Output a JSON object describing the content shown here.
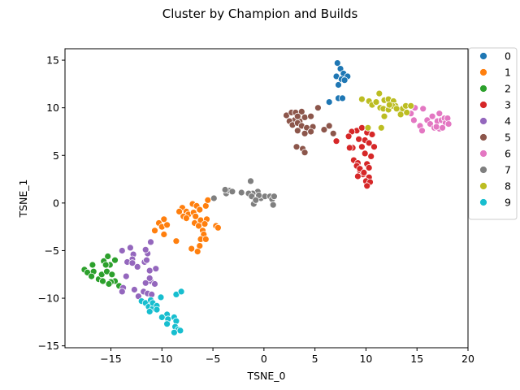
{
  "chart_data": {
    "type": "scatter",
    "title": "Cluster by Champion and Builds",
    "xlabel": "TSNE_0",
    "ylabel": "TSNE_1",
    "xlim": [
      -19.5,
      20
    ],
    "ylim": [
      -15.2,
      16.2
    ],
    "xticks": [
      -15,
      -10,
      -5,
      0,
      5,
      10,
      15,
      20
    ],
    "yticks": [
      -15,
      -10,
      -5,
      0,
      5,
      10,
      15
    ],
    "grid": false,
    "legend_position": "outside-right",
    "series": [
      {
        "name": "0",
        "color": "#1f77b4",
        "points": [
          [
            7.2,
            14.7
          ],
          [
            7.5,
            14.1
          ],
          [
            7.8,
            13.6
          ],
          [
            7.1,
            13.3
          ],
          [
            8.2,
            13.3
          ],
          [
            7.6,
            13.0
          ],
          [
            7.3,
            12.4
          ],
          [
            7.9,
            12.9
          ],
          [
            7.3,
            11.0
          ],
          [
            7.7,
            11.0
          ],
          [
            6.4,
            10.6
          ]
        ]
      },
      {
        "name": "1",
        "color": "#ff7f0e",
        "points": [
          [
            -8.0,
            -0.5
          ],
          [
            -7.6,
            -0.9
          ],
          [
            -7.0,
            -0.1
          ],
          [
            -6.6,
            -0.3
          ],
          [
            -6.3,
            -0.7
          ],
          [
            -7.4,
            -1.2
          ],
          [
            -6.9,
            -1.0
          ],
          [
            -5.7,
            -0.3
          ],
          [
            -5.5,
            0.3
          ],
          [
            -9.8,
            -1.7
          ],
          [
            -10.3,
            -2.1
          ],
          [
            -10.0,
            -2.5
          ],
          [
            -9.5,
            -2.3
          ],
          [
            -10.7,
            -2.9
          ],
          [
            -9.8,
            -3.3
          ],
          [
            -7.9,
            -1.4
          ],
          [
            -6.2,
            -1.8
          ],
          [
            -5.6,
            -1.7
          ],
          [
            -5.8,
            -2.2
          ],
          [
            -4.7,
            -2.4
          ],
          [
            -4.5,
            -2.6
          ],
          [
            -6.8,
            -2.1
          ],
          [
            -6.4,
            -2.4
          ],
          [
            -6.0,
            -2.9
          ],
          [
            -5.9,
            -3.3
          ],
          [
            -6.2,
            -3.8
          ],
          [
            -5.7,
            -3.8
          ],
          [
            -6.3,
            -4.5
          ],
          [
            -7.1,
            -4.8
          ],
          [
            -6.5,
            -5.1
          ],
          [
            -8.6,
            -4.0
          ],
          [
            -7.6,
            -1.6
          ],
          [
            -8.3,
            -0.9
          ],
          [
            -6.7,
            -1.4
          ]
        ]
      },
      {
        "name": "2",
        "color": "#2ca02c",
        "points": [
          [
            -17.6,
            -7.0
          ],
          [
            -17.3,
            -7.3
          ],
          [
            -16.8,
            -6.5
          ],
          [
            -16.7,
            -7.2
          ],
          [
            -16.9,
            -7.7
          ],
          [
            -16.2,
            -8.0
          ],
          [
            -15.8,
            -8.2
          ],
          [
            -15.9,
            -7.5
          ],
          [
            -15.4,
            -7.2
          ],
          [
            -15.7,
            -6.1
          ],
          [
            -15.3,
            -5.6
          ],
          [
            -15.1,
            -6.5
          ],
          [
            -15.5,
            -6.5
          ],
          [
            -14.6,
            -6.0
          ],
          [
            -14.9,
            -7.5
          ],
          [
            -14.6,
            -8.2
          ],
          [
            -15.0,
            -8.3
          ],
          [
            -15.2,
            -8.5
          ],
          [
            -14.2,
            -8.7
          ]
        ]
      },
      {
        "name": "3",
        "color": "#d62728",
        "points": [
          [
            9.1,
            7.6
          ],
          [
            9.6,
            7.9
          ],
          [
            10.1,
            7.4
          ],
          [
            10.6,
            7.2
          ],
          [
            8.6,
            7.5
          ],
          [
            8.3,
            7.0
          ],
          [
            9.9,
            6.6
          ],
          [
            10.3,
            6.3
          ],
          [
            8.7,
            5.8
          ],
          [
            8.4,
            5.8
          ],
          [
            9.6,
            5.9
          ],
          [
            10.8,
            5.9
          ],
          [
            9.9,
            5.2
          ],
          [
            10.5,
            4.9
          ],
          [
            8.8,
            4.5
          ],
          [
            9.2,
            4.2
          ],
          [
            9.1,
            3.9
          ],
          [
            10.1,
            4.1
          ],
          [
            10.3,
            3.7
          ],
          [
            9.4,
            3.4
          ],
          [
            9.7,
            3.0
          ],
          [
            9.2,
            2.8
          ],
          [
            10.3,
            2.7
          ],
          [
            10.0,
            2.3
          ],
          [
            10.4,
            2.2
          ],
          [
            10.1,
            1.8
          ],
          [
            9.4,
            3.6
          ],
          [
            7.1,
            6.5
          ],
          [
            9.8,
            3.2
          ],
          [
            9.3,
            6.7
          ]
        ]
      },
      {
        "name": "4",
        "color": "#9467bd",
        "points": [
          [
            -13.1,
            -4.7
          ],
          [
            -13.9,
            -5.0
          ],
          [
            -12.8,
            -5.4
          ],
          [
            -12.9,
            -5.9
          ],
          [
            -13.4,
            -6.2
          ],
          [
            -12.9,
            -6.3
          ],
          [
            -12.4,
            -6.7
          ],
          [
            -11.7,
            -6.2
          ],
          [
            -11.5,
            -6.0
          ],
          [
            -11.4,
            -5.3
          ],
          [
            -11.6,
            -4.9
          ],
          [
            -11.1,
            -4.1
          ],
          [
            -13.5,
            -7.7
          ],
          [
            -13.8,
            -8.9
          ],
          [
            -13.9,
            -9.3
          ],
          [
            -12.7,
            -9.1
          ],
          [
            -12.3,
            -9.8
          ],
          [
            -11.8,
            -9.3
          ],
          [
            -11.4,
            -9.5
          ],
          [
            -11.0,
            -9.6
          ],
          [
            -11.1,
            -8.2
          ],
          [
            -11.6,
            -8.4
          ],
          [
            -10.6,
            -6.9
          ],
          [
            -11.2,
            -7.1
          ],
          [
            -10.7,
            -8.5
          ],
          [
            -11.2,
            -7.9
          ]
        ]
      },
      {
        "name": "5",
        "color": "#8c564b",
        "points": [
          [
            2.2,
            9.2
          ],
          [
            2.7,
            9.5
          ],
          [
            3.1,
            9.5
          ],
          [
            3.7,
            9.6
          ],
          [
            4.0,
            9.0
          ],
          [
            4.6,
            9.1
          ],
          [
            3.5,
            8.6
          ],
          [
            3.0,
            8.7
          ],
          [
            2.5,
            8.6
          ],
          [
            2.8,
            8.2
          ],
          [
            3.3,
            8.4
          ],
          [
            3.7,
            8.1
          ],
          [
            4.2,
            7.9
          ],
          [
            4.8,
            8.0
          ],
          [
            4.6,
            7.5
          ],
          [
            3.3,
            7.6
          ],
          [
            4.0,
            7.3
          ],
          [
            3.2,
            5.9
          ],
          [
            3.8,
            5.7
          ],
          [
            4.0,
            5.3
          ],
          [
            5.3,
            10.0
          ],
          [
            5.9,
            7.7
          ],
          [
            6.4,
            8.1
          ],
          [
            6.8,
            7.3
          ],
          [
            3.3,
            9.1
          ]
        ]
      },
      {
        "name": "6",
        "color": "#e377c2",
        "points": [
          [
            14.8,
            10.0
          ],
          [
            15.6,
            9.9
          ],
          [
            14.4,
            9.4
          ],
          [
            14.7,
            8.7
          ],
          [
            15.3,
            8.1
          ],
          [
            15.5,
            7.6
          ],
          [
            16.0,
            8.7
          ],
          [
            16.5,
            9.1
          ],
          [
            16.3,
            8.3
          ],
          [
            16.7,
            7.9
          ],
          [
            17.0,
            8.6
          ],
          [
            17.2,
            9.4
          ],
          [
            17.4,
            8.7
          ],
          [
            17.2,
            7.8
          ],
          [
            17.7,
            8.9
          ],
          [
            17.8,
            8.4
          ],
          [
            18.0,
            8.9
          ],
          [
            18.1,
            8.3
          ],
          [
            16.9,
            8.0
          ],
          [
            17.5,
            7.9
          ]
        ]
      },
      {
        "name": "7",
        "color": "#7f7f7f",
        "points": [
          [
            -4.9,
            0.5
          ],
          [
            -3.7,
            1.0
          ],
          [
            -3.4,
            1.3
          ],
          [
            -3.8,
            1.4
          ],
          [
            -3.1,
            1.2
          ],
          [
            -1.3,
            2.3
          ],
          [
            -0.6,
            1.2
          ],
          [
            -1.1,
            1.0
          ],
          [
            -1.5,
            1.0
          ],
          [
            -2.2,
            1.1
          ],
          [
            -1.2,
            0.7
          ],
          [
            -0.3,
            0.5
          ],
          [
            -0.5,
            0.8
          ],
          [
            0.1,
            0.7
          ],
          [
            0.6,
            0.7
          ],
          [
            0.8,
            0.4
          ],
          [
            0.9,
            -0.2
          ],
          [
            1.0,
            0.7
          ],
          [
            -1.0,
            -0.1
          ],
          [
            -0.8,
            0.3
          ]
        ]
      },
      {
        "name": "8",
        "color": "#bcbd22",
        "points": [
          [
            9.6,
            10.9
          ],
          [
            10.3,
            10.7
          ],
          [
            10.6,
            10.3
          ],
          [
            11.0,
            10.6
          ],
          [
            11.3,
            11.5
          ],
          [
            11.8,
            10.8
          ],
          [
            12.2,
            10.9
          ],
          [
            12.7,
            10.7
          ],
          [
            11.4,
            10.0
          ],
          [
            11.7,
            9.9
          ],
          [
            12.2,
            9.8
          ],
          [
            11.8,
            9.1
          ],
          [
            12.9,
            10.2
          ],
          [
            13.2,
            9.8
          ],
          [
            13.6,
            9.9
          ],
          [
            13.9,
            10.2
          ],
          [
            14.4,
            10.2
          ],
          [
            13.4,
            9.3
          ],
          [
            14.0,
            9.5
          ],
          [
            12.6,
            10.2
          ],
          [
            13.0,
            9.9
          ],
          [
            10.2,
            7.9
          ],
          [
            11.5,
            7.9
          ],
          [
            12.3,
            10.3
          ]
        ]
      },
      {
        "name": "9",
        "color": "#17becf",
        "points": [
          [
            -12.0,
            -10.3
          ],
          [
            -11.6,
            -10.5
          ],
          [
            -11.1,
            -10.2
          ],
          [
            -10.7,
            -10.7
          ],
          [
            -11.3,
            -10.9
          ],
          [
            -10.9,
            -11.1
          ],
          [
            -11.2,
            -11.4
          ],
          [
            -10.9,
            -10.5
          ],
          [
            -10.5,
            -10.8
          ],
          [
            -10.5,
            -11.2
          ],
          [
            -10.1,
            -9.9
          ],
          [
            -9.5,
            -11.7
          ],
          [
            -10.0,
            -12.0
          ],
          [
            -9.4,
            -12.2
          ],
          [
            -9.5,
            -12.7
          ],
          [
            -8.8,
            -12.0
          ],
          [
            -8.6,
            -12.4
          ],
          [
            -8.7,
            -13.0
          ],
          [
            -8.4,
            -13.3
          ],
          [
            -8.8,
            -13.6
          ],
          [
            -8.2,
            -13.4
          ],
          [
            -8.6,
            -9.6
          ],
          [
            -8.1,
            -9.3
          ]
        ]
      }
    ]
  }
}
